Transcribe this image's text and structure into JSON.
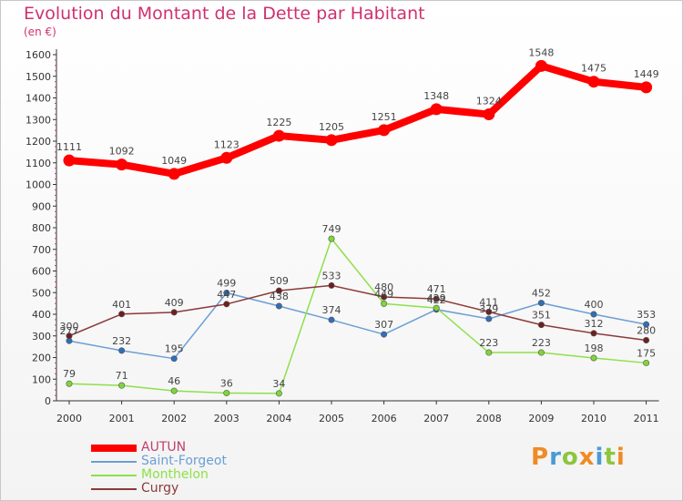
{
  "title": "Evolution du Montant de la Dette par Habitant",
  "unit": "(en €)",
  "logo": {
    "text": "Proxiti",
    "letters": [
      {
        "ch": "P",
        "color": "#f08a24"
      },
      {
        "ch": "r",
        "color": "#4a9ad8"
      },
      {
        "ch": "o",
        "color": "#8cc63e"
      },
      {
        "ch": "x",
        "color": "#f08a24"
      },
      {
        "ch": "i",
        "color": "#4a9ad8"
      },
      {
        "ch": "t",
        "color": "#8cc63e"
      },
      {
        "ch": "i",
        "color": "#f08a24"
      }
    ]
  },
  "chart_data": {
    "type": "line",
    "x": [
      "2000",
      "2001",
      "2002",
      "2003",
      "2004",
      "2005",
      "2006",
      "2007",
      "2008",
      "2009",
      "2010",
      "2011"
    ],
    "ylim": [
      0,
      1600
    ],
    "yticks": [
      0,
      100,
      200,
      300,
      400,
      500,
      600,
      700,
      800,
      900,
      1000,
      1100,
      1200,
      1300,
      1400,
      1500,
      1600
    ],
    "grid": false,
    "legend_position": "bottom-left",
    "series": [
      {
        "name": "AUTUN",
        "color": "#ff0000",
        "marker": "#ff0000",
        "values": [
          1111,
          1092,
          1049,
          1123,
          1225,
          1205,
          1251,
          1348,
          1324,
          1548,
          1475,
          1449
        ]
      },
      {
        "name": "Saint-Forgeot",
        "color": "#6b9fd4",
        "marker": "#2f6fb8",
        "values": [
          277,
          232,
          195,
          499,
          438,
          374,
          307,
          422,
          379,
          452,
          400,
          353
        ]
      },
      {
        "name": "Monthelon",
        "color": "#8ee04a",
        "marker": "#7ed63a",
        "values": [
          79,
          71,
          46,
          36,
          34,
          749,
          449,
          429,
          223,
          223,
          198,
          175
        ]
      },
      {
        "name": "Curgy",
        "color": "#8b3a3a",
        "marker": "#6e1f1f",
        "values": [
          300,
          401,
          409,
          447,
          509,
          533,
          480,
          471,
          411,
          351,
          312,
          280
        ]
      }
    ]
  }
}
